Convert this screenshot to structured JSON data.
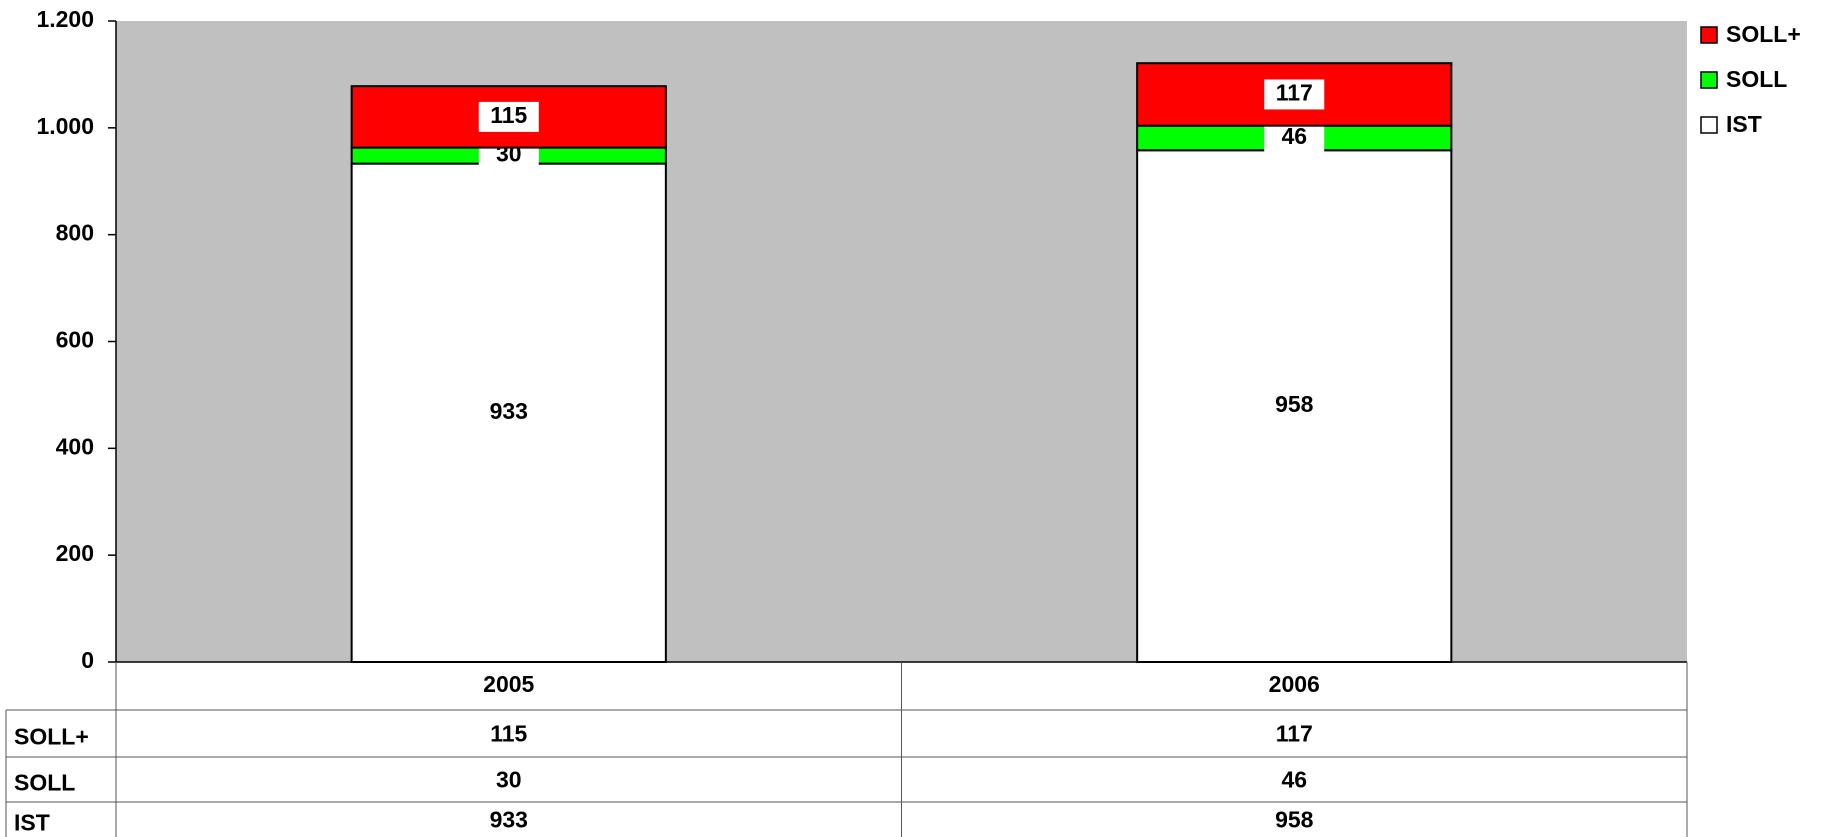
{
  "chart_data": {
    "type": "stacked_bar",
    "categories": [
      "2005",
      "2006"
    ],
    "series": [
      {
        "name": "SOLL+",
        "color": "#ff0000",
        "values": [
          115,
          117
        ]
      },
      {
        "name": "SOLL",
        "color": "#00ff00",
        "values": [
          30,
          46
        ]
      },
      {
        "name": "IST",
        "color": "#ffffff",
        "values": [
          933,
          958
        ]
      }
    ],
    "ylim": [
      0,
      1200
    ],
    "yticks": [
      0,
      200,
      400,
      600,
      800,
      {
        "value": 1000,
        "label": "1.000"
      },
      {
        "value": 1200,
        "label": "1.200"
      }
    ],
    "plot_background": "#c0c0c0",
    "legend": "right"
  }
}
